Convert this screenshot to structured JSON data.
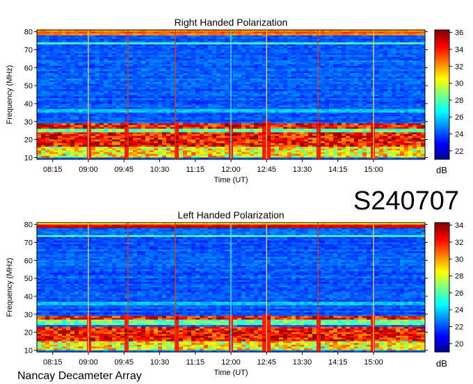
{
  "observation_id": "S240707",
  "footer_label": "Nancay Decameter Array",
  "chart_data": [
    {
      "type": "heatmap",
      "title": "Right Handed Polarization",
      "xlabel": "Time (UT)",
      "ylabel": "Frequency (MHz)",
      "x_ticks": [
        "08:15",
        "09:00",
        "09:45",
        "10:30",
        "11:15",
        "12:00",
        "12:45",
        "13:30",
        "14:15",
        "15:00"
      ],
      "x_range_ut": [
        "07:55",
        "16:05"
      ],
      "y_ticks": [
        10,
        20,
        30,
        40,
        50,
        60,
        70,
        80
      ],
      "ylim": [
        9,
        81
      ],
      "colorbar": {
        "label": "dB",
        "ticks": [
          22,
          24,
          26,
          28,
          30,
          32,
          34,
          36
        ],
        "range": [
          21,
          36.3
        ]
      },
      "colormap": "jet",
      "strong_bands_mhz": [
        [
          16,
          24
        ],
        [
          26,
          29
        ]
      ],
      "vertical_markers_ut": [
        "09:00",
        "09:50",
        "10:50",
        "12:00",
        "12:45",
        "13:50",
        "15:00"
      ]
    },
    {
      "type": "heatmap",
      "title": "Left Handed Polarization",
      "xlabel": "Time (UT)",
      "ylabel": "Frequency (MHz)",
      "x_ticks": [
        "08:15",
        "09:00",
        "09:45",
        "10:30",
        "11:15",
        "12:00",
        "12:45",
        "13:30",
        "14:15",
        "15:00"
      ],
      "x_range_ut": [
        "07:55",
        "16:05"
      ],
      "y_ticks": [
        10,
        20,
        30,
        40,
        50,
        60,
        70,
        80
      ],
      "ylim": [
        9,
        81
      ],
      "colorbar": {
        "label": "dB",
        "ticks": [
          20,
          22,
          24,
          26,
          28,
          30,
          32,
          34
        ],
        "range": [
          19,
          34.3
        ]
      },
      "colormap": "jet",
      "strong_bands_mhz": [
        [
          15,
          23
        ],
        [
          27,
          29
        ]
      ],
      "vertical_markers_ut": [
        "09:00",
        "09:50",
        "10:50",
        "12:00",
        "12:45",
        "13:50",
        "15:00"
      ]
    }
  ]
}
